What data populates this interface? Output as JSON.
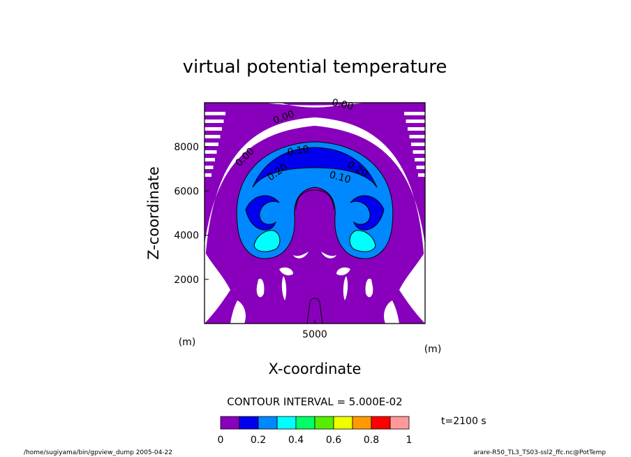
{
  "chart_data": {
    "type": "heatmap",
    "title": "virtual potential temperature",
    "xlabel": "X-coordinate",
    "ylabel": "Z-coordinate",
    "x_unit": "(m)",
    "y_unit": "(m)",
    "xlim": [
      0,
      10000
    ],
    "ylim": [
      0,
      10000
    ],
    "x_ticks": [
      "5000"
    ],
    "y_ticks": [
      "2000",
      "4000",
      "6000",
      "8000"
    ],
    "contour_interval_text": "CONTOUR INTERVAL = 5.000E-02",
    "time_text": "t=2100 s",
    "colorbar": {
      "levels": [
        0,
        0.1,
        0.2,
        0.3,
        0.4,
        0.5,
        0.6,
        0.7,
        0.8,
        0.9,
        1.0
      ],
      "tick_labels": [
        "0",
        "0.2",
        "0.4",
        "0.6",
        "0.8",
        "1"
      ],
      "colors": [
        "#8800bb",
        "#0000ee",
        "#0088ff",
        "#00ffff",
        "#00ff66",
        "#55ee00",
        "#eeff00",
        "#ff9900",
        "#ff0000",
        "#ff9999"
      ]
    },
    "contour_labels": [
      "0.00",
      "0.00",
      "0.00",
      "0.10",
      "0.20",
      "0.10",
      "0.20"
    ],
    "footer_left": "/home/sugiyama/bin/gpview_dump  2005-04-22",
    "footer_right": "arare-R50_TL3_TS03-ssl2_ffc.nc@PotTemp"
  }
}
